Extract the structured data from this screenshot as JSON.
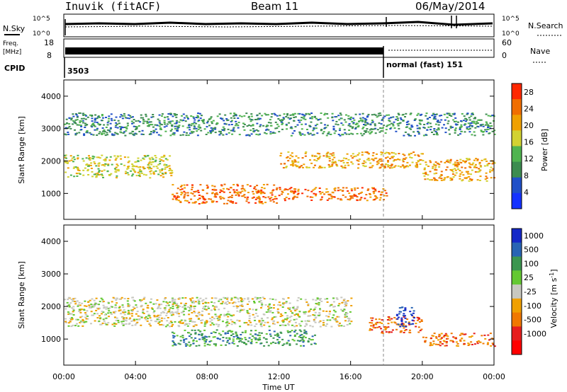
{
  "header": {
    "station": "Inuvik (fitACF)",
    "beam": "Beam 11",
    "date": "06/May/2014"
  },
  "noise_panel": {
    "left_label": "N.Sky",
    "right_label": "N.Search",
    "left_ticks": [
      "10^5",
      "10^0"
    ],
    "right_ticks": [
      "10^5",
      "10^0"
    ]
  },
  "freq_panel": {
    "left_label_1": "Freq.",
    "left_label_2": "[MHz]",
    "right_label": "Nave",
    "left_ticks": [
      "18",
      "8"
    ],
    "right_ticks": [
      "60",
      "0"
    ]
  },
  "cpid_panel": {
    "label": "CPID",
    "segments": [
      {
        "value": "3503",
        "start": "00:00"
      },
      {
        "value": "normal (fast) 151",
        "start": "18:00"
      }
    ]
  },
  "chart_data": [
    {
      "type": "heatmap",
      "title": "",
      "xlabel": "",
      "ylabel": "Slant Range [km]",
      "x_ticks": [
        "00:00",
        "04:00",
        "08:00",
        "12:00",
        "16:00",
        "20:00",
        "00:00"
      ],
      "xlim": [
        "00:00",
        "24:00"
      ],
      "y_ticks": [
        1000,
        2000,
        3000,
        4000
      ],
      "ylim": [
        200,
        4500
      ],
      "colorbar": {
        "label": "Power [dB]",
        "ticks": [
          4,
          8,
          12,
          16,
          20,
          24,
          28
        ],
        "range": [
          0,
          30
        ],
        "colors": [
          "#1432ff",
          "#2050c8",
          "#3c8c50",
          "#50b450",
          "#d2d232",
          "#f0a000",
          "#f06e00",
          "#ff2800"
        ]
      },
      "scatter_bands": [
        {
          "x": [
            0,
            6
          ],
          "range_km": [
            1500,
            2200
          ],
          "level_db": 18
        },
        {
          "x": [
            6,
            12
          ],
          "range_km": [
            700,
            1300
          ],
          "level_db": 26
        },
        {
          "x": [
            12,
            18
          ],
          "range_km": [
            800,
            1200
          ],
          "level_db": 24
        },
        {
          "x": [
            12,
            20
          ],
          "range_km": [
            1800,
            2300
          ],
          "level_db": 20
        },
        {
          "x": [
            20,
            24
          ],
          "range_km": [
            1400,
            2100
          ],
          "level_db": 22
        },
        {
          "x": [
            0,
            24
          ],
          "range_km": [
            2800,
            3500
          ],
          "level_db": 8
        }
      ]
    },
    {
      "type": "heatmap",
      "title": "",
      "xlabel": "Time UT",
      "ylabel": "Slant Range [km]",
      "x_ticks": [
        "00:00",
        "04:00",
        "08:00",
        "12:00",
        "16:00",
        "20:00",
        "00:00"
      ],
      "xlim": [
        "00:00",
        "24:00"
      ],
      "y_ticks": [
        1000,
        2000,
        3000,
        4000
      ],
      "ylim": [
        200,
        4500
      ],
      "colorbar": {
        "label": "Velocity [m s",
        "label_sup": "-1",
        "label_end": "]",
        "ticks": [
          "1000",
          "500",
          "100",
          "25",
          "-25",
          "-100",
          "-500",
          "-1000"
        ],
        "colors": [
          "#1428c8",
          "#2864b4",
          "#3c9650",
          "#64c832",
          "#c8c8c0",
          "#f0a000",
          "#f07800",
          "#e61e1e",
          "#ff0000"
        ]
      },
      "scatter_bands": [
        {
          "x": [
            0,
            16
          ],
          "range_km": [
            1400,
            2300
          ],
          "level": "-25 to 25"
        },
        {
          "x": [
            6,
            14
          ],
          "range_km": [
            800,
            1300
          ],
          "level": "100 to 500"
        },
        {
          "x": [
            17,
            20
          ],
          "range_km": [
            1200,
            1700
          ],
          "level": "-100 to -500"
        },
        {
          "x": [
            18.5,
            19.5
          ],
          "range_km": [
            1400,
            2000
          ],
          "level": "500 to 1000"
        },
        {
          "x": [
            20,
            24
          ],
          "range_km": [
            800,
            1200
          ],
          "level": "-100 to -500"
        }
      ]
    }
  ]
}
